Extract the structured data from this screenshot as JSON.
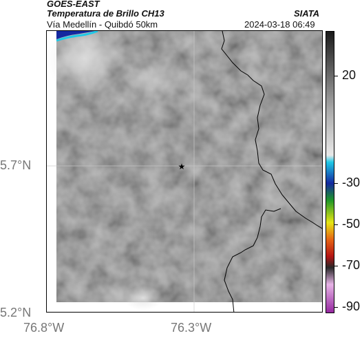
{
  "header": {
    "satellite": "GOES-EAST",
    "product": "Temperatura de Brillo CH13",
    "location": "Vía Medellín - Quibdó 50km",
    "organization": "SIATA",
    "datetime": "2024-03-18 06:49"
  },
  "map": {
    "lat_labels": [
      "5.7°N",
      "5.2°N"
    ],
    "lon_labels": [
      "76.8°W",
      "76.3°W"
    ],
    "marker": "star-marker",
    "colors": {
      "cloud_gray": "#8a8a8a",
      "border": "#000000",
      "grid": "#c8c8c8"
    }
  },
  "colorbar": {
    "tick_labels": [
      "20",
      "-30",
      "-50",
      "-70",
      "-90"
    ],
    "colors": [
      "#1a1a1a",
      "#aaaaaa",
      "#e8e8e8",
      "#1ec8e6",
      "#1428a0",
      "#1e9628",
      "#e6e614",
      "#e66414",
      "#b41414",
      "#282828",
      "#e6b4e6",
      "#9628a0"
    ]
  }
}
